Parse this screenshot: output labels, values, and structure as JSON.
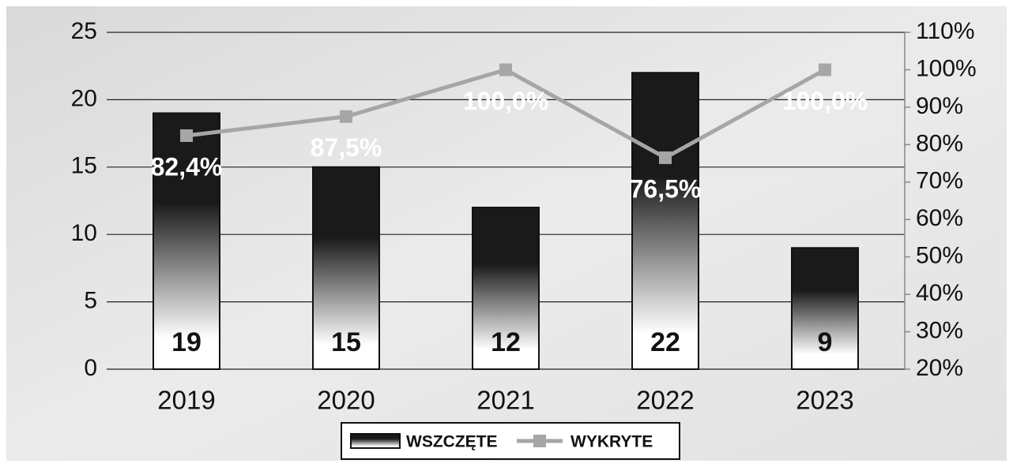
{
  "chart_data": {
    "type": "bar",
    "categories": [
      "2019",
      "2020",
      "2021",
      "2022",
      "2023"
    ],
    "series": [
      {
        "name": "WSZCZĘTE",
        "type": "bar",
        "color": "#1a1a1a",
        "values": [
          19,
          15,
          12,
          22,
          9
        ]
      },
      {
        "name": "WYKRYTE",
        "type": "line",
        "axis": "y2",
        "color": "#a6a6a6",
        "values": [
          82.4,
          87.5,
          100,
          76.5,
          100
        ],
        "value_labels": [
          "82,4%",
          "87,5%",
          "100,0%",
          "76,5%",
          "100,0%"
        ]
      }
    ],
    "ylim": [
      0,
      25
    ],
    "yticks": [
      0,
      5,
      10,
      15,
      20,
      25
    ],
    "y2lim": [
      20,
      110
    ],
    "y2ticks": [
      {
        "value": 20,
        "label": "20%"
      },
      {
        "value": 30,
        "label": "30%"
      },
      {
        "value": 40,
        "label": "40%"
      },
      {
        "value": 50,
        "label": "50%"
      },
      {
        "value": 60,
        "label": "60%"
      },
      {
        "value": 70,
        "label": "70%"
      },
      {
        "value": 80,
        "label": "80%"
      },
      {
        "value": 90,
        "label": "90%"
      },
      {
        "value": 100,
        "label": "100%"
      },
      {
        "value": 110,
        "label": "110%"
      }
    ],
    "grid": true,
    "legend": "bottom"
  }
}
